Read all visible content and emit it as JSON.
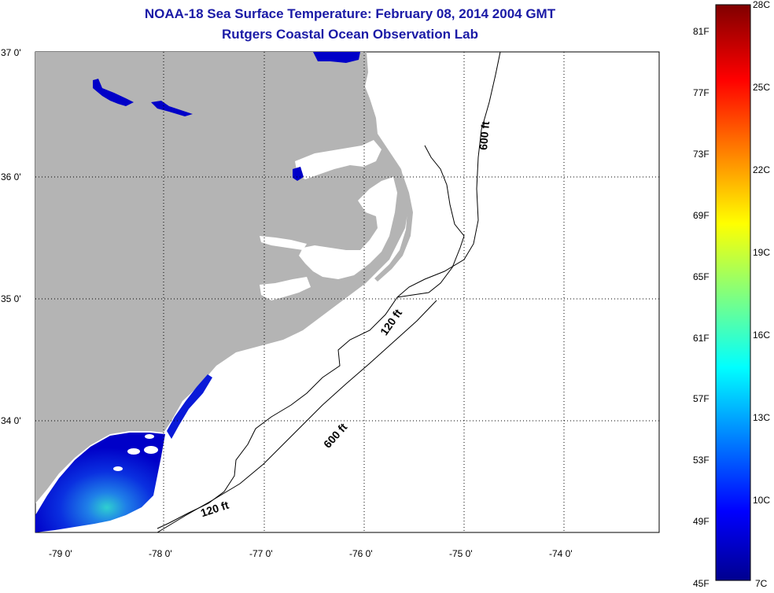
{
  "title": {
    "line1": "NOAA-18 Sea Surface Temperature:  February 08, 2014 2004 GMT",
    "line2": "Rutgers Coastal Ocean Observation Lab"
  },
  "map": {
    "lat_labels": [
      "37 0'",
      "36 0'",
      "35 0'",
      "34 0'"
    ],
    "lon_labels": [
      "-79 0'",
      "-78 0'",
      "-77 0'",
      "-76 0'",
      "-75 0'",
      "-74 0'"
    ],
    "contours": {
      "c600_north": "600 ft",
      "c120_mid": "120 ft",
      "c600_south": "600 ft",
      "c120_south": "120 ft"
    },
    "colors": {
      "land": "#b4b4b4",
      "sst_cold": "#0000c8",
      "sst_warm": "#2fd0d0"
    }
  },
  "colorbar": {
    "top_c": "28C",
    "bottom_c": "7C",
    "bottom_f": "45F",
    "f_labels": [
      "81F",
      "77F",
      "73F",
      "69F",
      "65F",
      "61F",
      "57F",
      "53F",
      "49F"
    ],
    "c_labels": [
      "25C",
      "22C",
      "19C",
      "16C",
      "13C",
      "10C"
    ],
    "colormap": [
      "#00008f",
      "#0000ff",
      "#00ffff",
      "#ffff00",
      "#ff0000",
      "#800000"
    ]
  }
}
